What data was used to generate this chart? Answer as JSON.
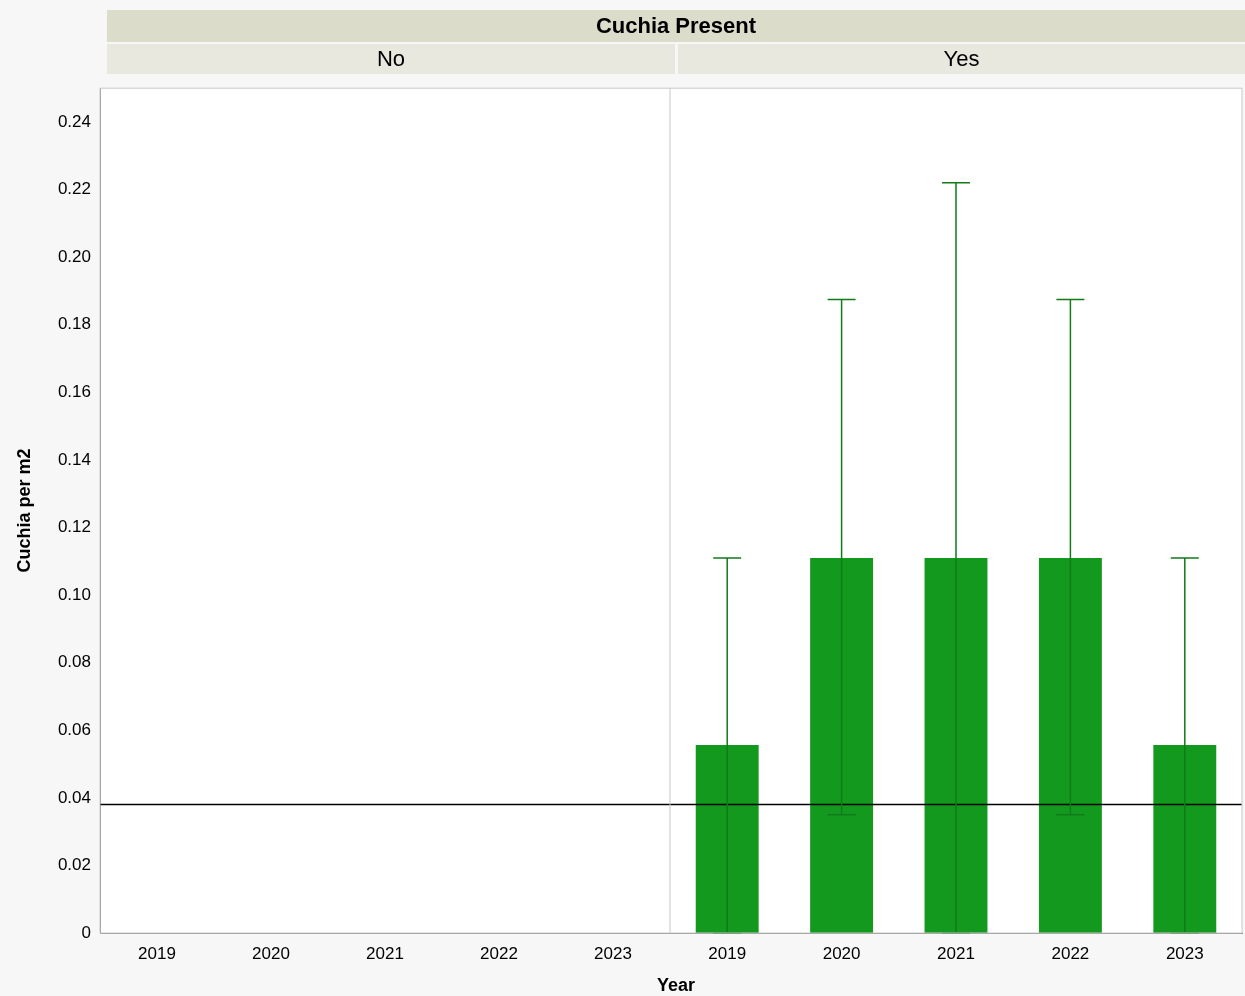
{
  "chart_data": [
    {
      "type": "bar",
      "title": "Cuchia Present",
      "subtitle": "No",
      "ylabel": "Cuchia per m2",
      "categories": [
        "2019",
        "2020",
        "2021",
        "2022",
        "2023"
      ],
      "values": [
        0,
        0,
        0,
        0,
        0
      ],
      "color": "#139a1e",
      "ylim": [
        0,
        0.25
      ],
      "yticks": [
        {
          "value": 0,
          "label": "0"
        },
        {
          "value": 0.02,
          "label": "0.02"
        },
        {
          "value": 0.04,
          "label": "0.04"
        },
        {
          "value": 0.06,
          "label": "0.06"
        },
        {
          "value": 0.08,
          "label": "0.08"
        },
        {
          "value": 0.1,
          "label": "0.10"
        },
        {
          "value": 0.12,
          "label": "0.12"
        },
        {
          "value": 0.14,
          "label": "0.14"
        },
        {
          "value": 0.16,
          "label": "0.16"
        },
        {
          "value": 0.18,
          "label": "0.18"
        },
        {
          "value": 0.2,
          "label": "0.20"
        },
        {
          "value": 0.22,
          "label": "0.22"
        },
        {
          "value": 0.24,
          "label": "0.24"
        }
      ],
      "ref_lines": [
        {
          "axis": "y",
          "value": 0.038,
          "color": "#000000"
        }
      ],
      "legend": false,
      "grid": false
    },
    {
      "type": "bar",
      "subtitle": "Yes",
      "xlabel": "Year",
      "categories": [
        "2019",
        "2020",
        "2021",
        "2022",
        "2023"
      ],
      "values": [
        0.0556,
        0.111,
        0.111,
        0.111,
        0.0556
      ],
      "color": "#139a1e",
      "errors": [
        [
          0,
          0.111
        ],
        [
          0.035,
          0.1875
        ],
        [
          0,
          0.222
        ],
        [
          0.035,
          0.1875
        ],
        [
          0,
          0.111
        ]
      ],
      "ylim": [
        0,
        0.25
      ],
      "ref_lines": [
        {
          "axis": "y",
          "value": 0.038,
          "color": "#000000"
        }
      ],
      "tick_labels": "x",
      "legend": false,
      "grid": false
    }
  ]
}
